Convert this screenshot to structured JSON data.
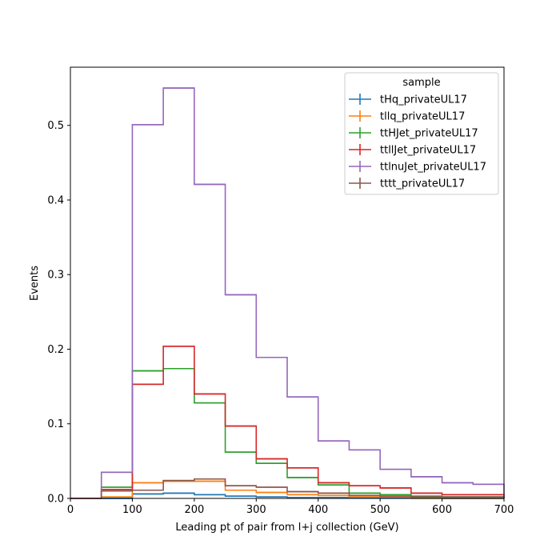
{
  "chart_data": {
    "type": "step-histogram",
    "xlabel": "Leading pt of pair from l+j collection (GeV)",
    "ylabel": "Events",
    "xlim": [
      0,
      700
    ],
    "ylim": [
      0,
      0.578
    ],
    "x_ticks": [
      0,
      100,
      200,
      300,
      400,
      500,
      600,
      700
    ],
    "y_ticks": [
      0.0,
      0.1,
      0.2,
      0.3,
      0.4,
      0.5
    ],
    "x_tick_labels": [
      "0",
      "100",
      "200",
      "300",
      "400",
      "500",
      "600",
      "700"
    ],
    "y_tick_labels": [
      "0.0",
      "0.1",
      "0.2",
      "0.3",
      "0.4",
      "0.5"
    ],
    "grid": false,
    "legend": {
      "title": "sample",
      "placement": "top-right"
    },
    "bin_edges": [
      0,
      50,
      100,
      150,
      200,
      250,
      300,
      350,
      400,
      450,
      500,
      550,
      600,
      650,
      700
    ],
    "series": [
      {
        "name": "tHq_privateUL17",
        "color": "#1f77b4",
        "values": [
          0.0,
          0.0,
          0.006,
          0.007,
          0.005,
          0.003,
          0.002,
          0.001,
          0.001,
          0.0005,
          0.0003,
          0.0002,
          0.0001,
          0.0001
        ]
      },
      {
        "name": "tllq_privateUL17",
        "color": "#ff7f0e",
        "values": [
          0.0,
          0.002,
          0.021,
          0.023,
          0.023,
          0.011,
          0.008,
          0.005,
          0.004,
          0.002,
          0.002,
          0.001,
          0.001,
          0.001
        ]
      },
      {
        "name": "ttHJet_privateUL17",
        "color": "#2ca02c",
        "values": [
          0.0,
          0.015,
          0.171,
          0.174,
          0.128,
          0.062,
          0.047,
          0.028,
          0.018,
          0.007,
          0.005,
          0.003,
          0.002,
          0.002
        ]
      },
      {
        "name": "ttllJet_privateUL17",
        "color": "#d62728",
        "values": [
          0.0,
          0.012,
          0.153,
          0.204,
          0.14,
          0.097,
          0.053,
          0.041,
          0.021,
          0.017,
          0.014,
          0.007,
          0.005,
          0.005
        ]
      },
      {
        "name": "ttlnuJet_privateUL17",
        "color": "#9467bd",
        "values": [
          0.0,
          0.035,
          0.501,
          0.55,
          0.421,
          0.273,
          0.189,
          0.136,
          0.077,
          0.065,
          0.039,
          0.029,
          0.021,
          0.019
        ]
      },
      {
        "name": "tttt_privateUL17",
        "color": "#8c564b",
        "values": [
          0.0,
          0.01,
          0.011,
          0.024,
          0.026,
          0.017,
          0.015,
          0.009,
          0.007,
          0.004,
          0.003,
          0.002,
          0.002,
          0.002
        ]
      }
    ]
  }
}
